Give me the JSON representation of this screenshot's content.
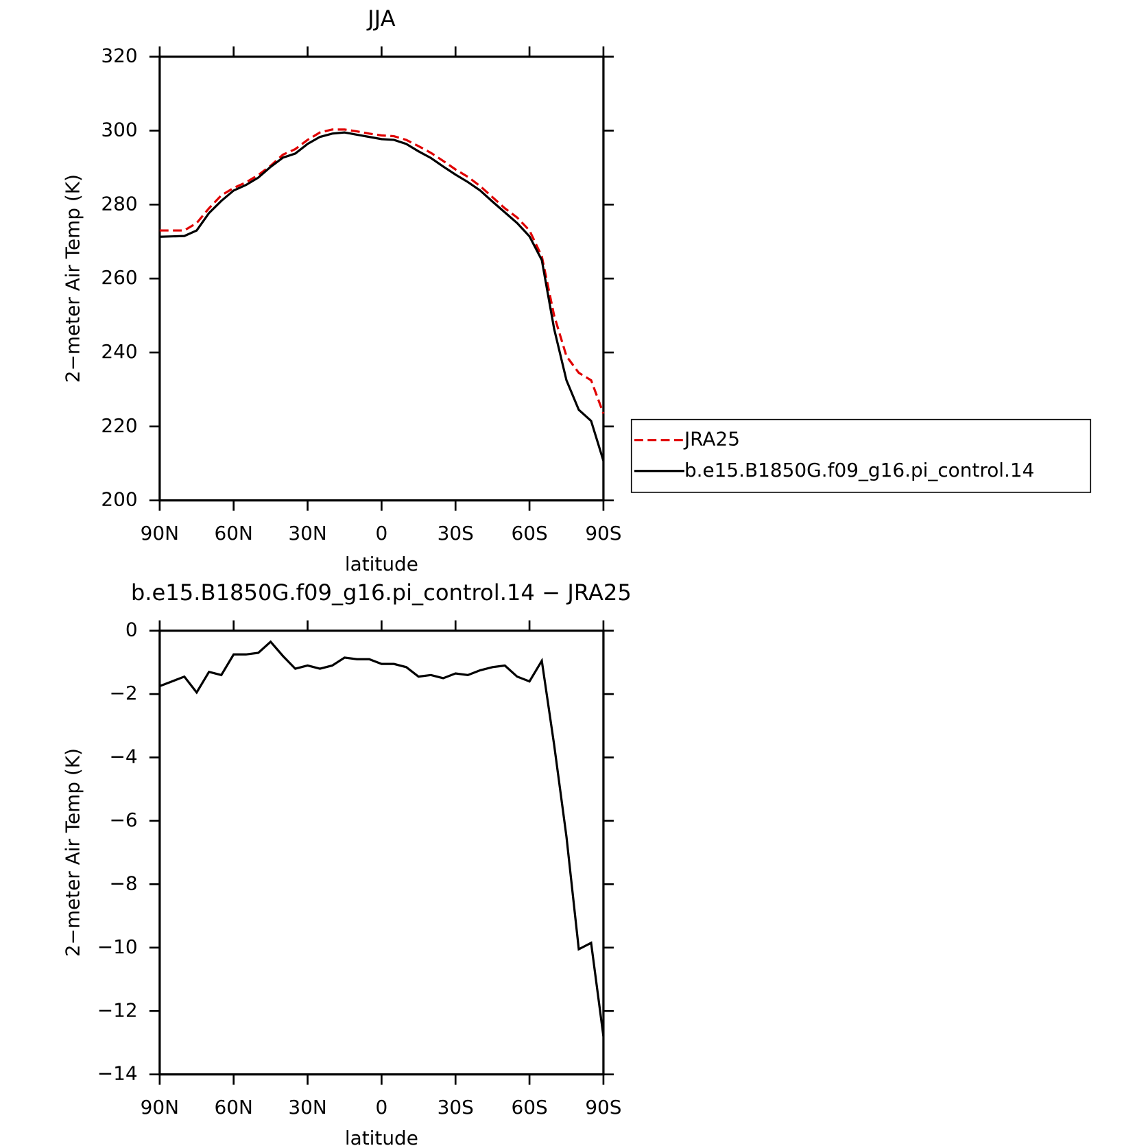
{
  "chart_data": [
    {
      "type": "line",
      "title": "JJA",
      "ylabel": "2−meter Air Temp (K)",
      "xlabel": "latitude",
      "x": [
        90,
        85,
        80,
        75,
        70,
        65,
        60,
        55,
        50,
        45,
        40,
        35,
        30,
        25,
        20,
        15,
        10,
        5,
        0,
        -5,
        -10,
        -15,
        -20,
        -25,
        -30,
        -35,
        -40,
        -45,
        -50,
        -55,
        -60,
        -65,
        -70,
        -75,
        -80,
        -85,
        -90
      ],
      "xlim": [
        90,
        -90
      ],
      "xticks": [
        {
          "value": 90,
          "label": "90N"
        },
        {
          "value": 60,
          "label": "60N"
        },
        {
          "value": 30,
          "label": "30N"
        },
        0,
        {
          "value": -30,
          "label": "30S"
        },
        {
          "value": -60,
          "label": "60S"
        },
        {
          "value": -90,
          "label": "90S"
        }
      ],
      "ylim": [
        200,
        320
      ],
      "yticks": [
        200,
        220,
        240,
        260,
        280,
        300,
        320
      ],
      "series": [
        {
          "name": "JRA25",
          "color": "#e00000",
          "dashed": true,
          "values": [
            273,
            273,
            273,
            275,
            279,
            282.5,
            284.5,
            286,
            288,
            290.5,
            293.5,
            295,
            297.5,
            299.5,
            300.3,
            300.3,
            299.8,
            299.2,
            298.7,
            298.5,
            297.5,
            295.8,
            294,
            291.8,
            289.5,
            287.5,
            285,
            282,
            279,
            276.5,
            273,
            266,
            250,
            239,
            234.5,
            232.5,
            223.5
          ]
        },
        {
          "name": "b.e15.B1850G.f09_g16.pi_control.14",
          "color": "#000000",
          "dashed": false,
          "values": [
            271.3,
            271.4,
            271.5,
            273,
            277.7,
            281,
            283.8,
            285.3,
            287.3,
            290.2,
            292.7,
            293.8,
            296.4,
            298.3,
            299.2,
            299.5,
            298.9,
            298.3,
            297.7,
            297.5,
            296.4,
            294.4,
            292.6,
            290.3,
            288.1,
            286.1,
            283.8,
            280.8,
            277.9,
            275,
            271.4,
            265,
            246.4,
            232.5,
            224.5,
            221.5,
            210.7
          ]
        }
      ]
    },
    {
      "type": "line",
      "title": "b.e15.B1850G.f09_g16.pi_control.14 − JRA25",
      "ylabel": "2−meter Air Temp (K)",
      "xlabel": "latitude",
      "x": [
        90,
        85,
        80,
        75,
        70,
        65,
        60,
        55,
        50,
        45,
        40,
        35,
        30,
        25,
        20,
        15,
        10,
        5,
        0,
        -5,
        -10,
        -15,
        -20,
        -25,
        -30,
        -35,
        -40,
        -45,
        -50,
        -55,
        -60,
        -65,
        -70,
        -75,
        -80,
        -85,
        -90
      ],
      "xlim": [
        90,
        -90
      ],
      "xticks": [
        {
          "value": 90,
          "label": "90N"
        },
        {
          "value": 60,
          "label": "60N"
        },
        {
          "value": 30,
          "label": "30N"
        },
        0,
        {
          "value": -30,
          "label": "30S"
        },
        {
          "value": -60,
          "label": "60S"
        },
        {
          "value": -90,
          "label": "90S"
        }
      ],
      "ylim": [
        -14,
        0
      ],
      "yticks": [
        {
          "value": -14,
          "label": "−14"
        },
        {
          "value": -12,
          "label": "−12"
        },
        {
          "value": -10,
          "label": "−10"
        },
        {
          "value": -8,
          "label": "−8"
        },
        {
          "value": -6,
          "label": "−6"
        },
        {
          "value": -4,
          "label": "−4"
        },
        {
          "value": -2,
          "label": "−2"
        },
        0
      ],
      "color": "#000000",
      "values": [
        -1.75,
        -1.6,
        -1.45,
        -1.95,
        -1.3,
        -1.4,
        -0.75,
        -0.75,
        -0.7,
        -0.35,
        -0.8,
        -1.2,
        -1.1,
        -1.2,
        -1.1,
        -0.85,
        -0.9,
        -0.9,
        -1.05,
        -1.05,
        -1.15,
        -1.45,
        -1.4,
        -1.5,
        -1.35,
        -1.4,
        -1.25,
        -1.15,
        -1.1,
        -1.45,
        -1.6,
        -0.95,
        -3.6,
        -6.5,
        -10.05,
        -9.85,
        -12.8
      ]
    }
  ]
}
